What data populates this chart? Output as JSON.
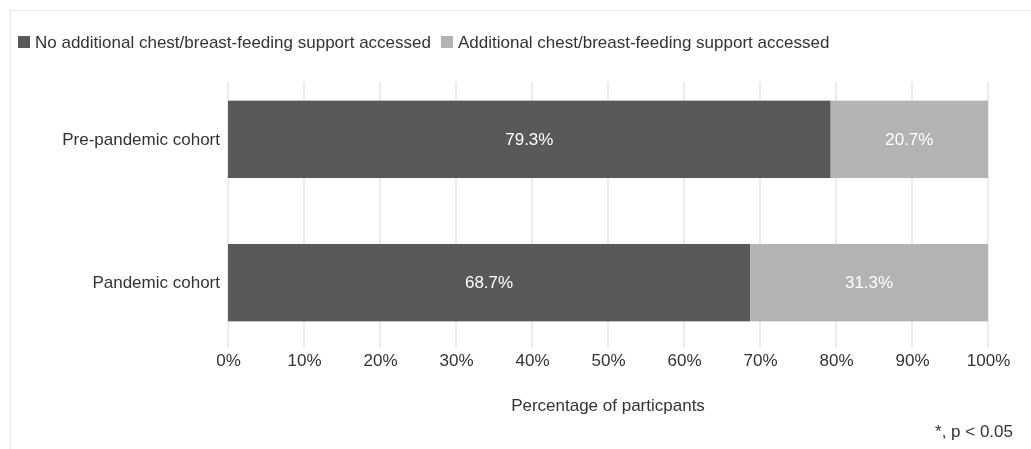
{
  "chart_data": {
    "type": "bar",
    "orientation": "horizontal",
    "stacked": true,
    "categories": [
      "Pre-pandemic cohort",
      "Pandemic cohort"
    ],
    "series": [
      {
        "name": "No additional chest/breast-feeding support accessed",
        "color": "#595959",
        "values": [
          79.3,
          68.7
        ],
        "value_labels": [
          "79.3%",
          "68.7%"
        ]
      },
      {
        "name": "Additional chest/breast-feeding support accessed",
        "color": "#b3b3b3",
        "values": [
          20.7,
          31.3
        ],
        "value_labels": [
          "20.7%",
          "31.3%"
        ]
      }
    ],
    "xlim": [
      0,
      100
    ],
    "xticks": [
      {
        "value": 0,
        "label": "0%"
      },
      {
        "value": 10,
        "label": "10%"
      },
      {
        "value": 20,
        "label": "20%"
      },
      {
        "value": 30,
        "label": "30%"
      },
      {
        "value": 40,
        "label": "40%"
      },
      {
        "value": 50,
        "label": "50%"
      },
      {
        "value": 60,
        "label": "60%"
      },
      {
        "value": 70,
        "label": "70%"
      },
      {
        "value": 80,
        "label": "80%"
      },
      {
        "value": 90,
        "label": "90%"
      },
      {
        "value": 100,
        "label": "100%"
      }
    ],
    "xlabel": "Percentage of particpants",
    "grid": "x",
    "legend": "top left",
    "annotations": [
      "*, p < 0.05"
    ]
  }
}
